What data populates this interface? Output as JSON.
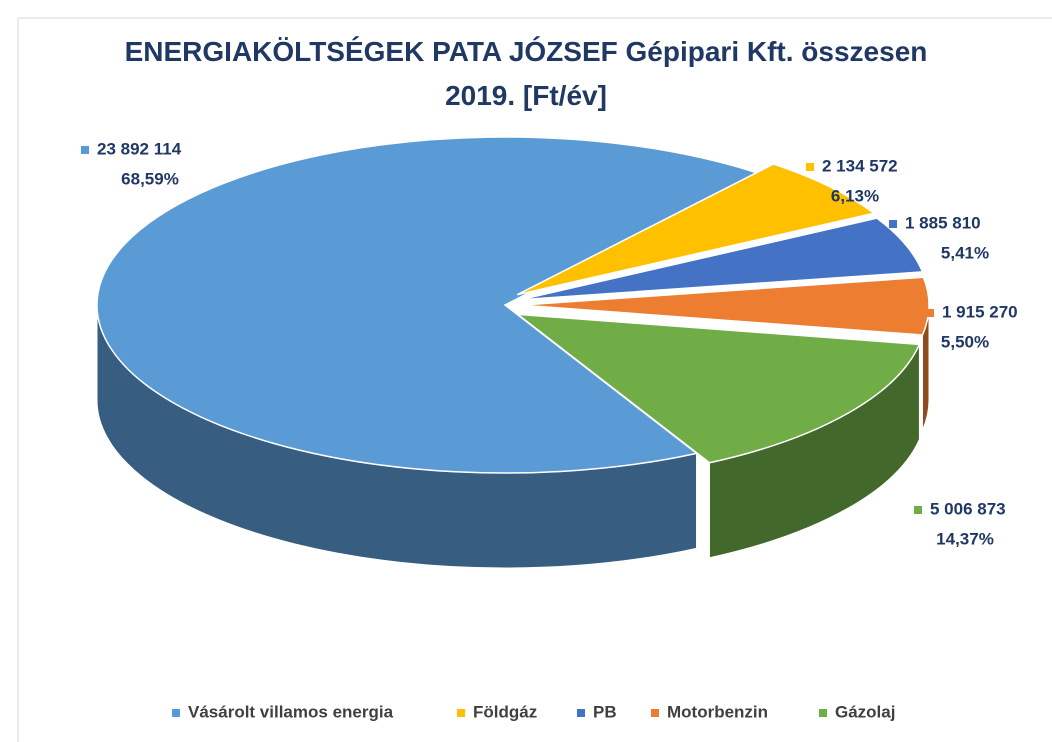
{
  "chart_data": {
    "type": "pie3d",
    "title": "ENERGIAKÖLTSÉGEK PATA JÓZSEF Gépipari Kft. összesen 2019. [Ft/év]",
    "categories": [
      "Vásárolt villamos energia",
      "Földgáz",
      "PB",
      "Motorbenzin",
      "Gázolaj"
    ],
    "values": [
      23892114,
      2134572,
      1885810,
      1915270,
      5006873
    ],
    "value_labels": [
      "23 892 114",
      "2 134 572",
      "1 885 810",
      "1 915 270",
      "5 006 873"
    ],
    "percents": [
      68.59,
      6.13,
      5.41,
      5.5,
      14.37
    ],
    "percent_labels": [
      "68,59%",
      "6,13%",
      "5,41%",
      "5,50%",
      "14,37%"
    ],
    "colors": [
      "#5b9bd5",
      "#ffc000",
      "#4472c4",
      "#ed7d31",
      "#70ad47"
    ],
    "legend": "bottom"
  }
}
